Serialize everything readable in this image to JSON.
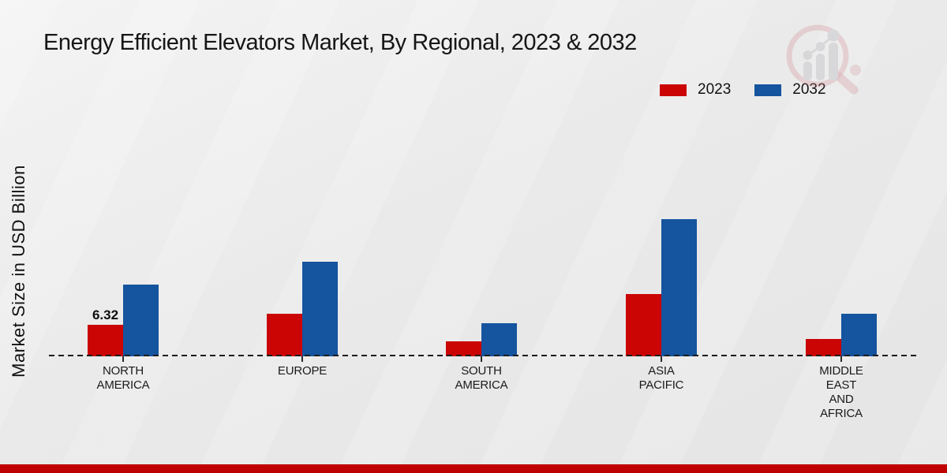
{
  "title": "Energy Efficient Elevators Market, By Regional, 2023 & 2032",
  "y_axis_label": "Market Size in USD Billion",
  "legend": [
    {
      "label": "2023",
      "color": "#cb0404"
    },
    {
      "label": "2032",
      "color": "#15549e"
    }
  ],
  "colors": {
    "series_2023": "#cb0404",
    "series_2032": "#15549e",
    "footer_accent": "#bf0101",
    "text": "#161616"
  },
  "logo_icon": "magnifier-bar-chart-watermark",
  "chart_data": {
    "type": "bar",
    "title": "Energy Efficient Elevators Market, By Regional, 2023 & 2032",
    "xlabel": "",
    "ylabel": "Market Size in USD Billion",
    "unit": "USD Billion",
    "categories": [
      "NORTH AMERICA",
      "EUROPE",
      "SOUTH AMERICA",
      "ASIA PACIFIC",
      "MIDDLE EAST AND AFRICA"
    ],
    "category_display_lines": [
      [
        "NORTH",
        "AMERICA"
      ],
      [
        "EUROPE"
      ],
      [
        "SOUTH",
        "AMERICA"
      ],
      [
        "ASIA",
        "PACIFIC"
      ],
      [
        "MIDDLE",
        "EAST",
        "AND",
        "AFRICA"
      ]
    ],
    "series": [
      {
        "name": "2023",
        "color": "#cb0404",
        "values": [
          6.32,
          8.5,
          3.0,
          12.5,
          3.5
        ],
        "data_labels": [
          "6.32",
          "",
          "",
          "",
          ""
        ]
      },
      {
        "name": "2032",
        "color": "#15549e",
        "values": [
          14.4,
          19.0,
          6.6,
          27.5,
          8.5
        ],
        "data_labels": [
          "",
          "",
          "",
          "",
          ""
        ]
      }
    ],
    "ylim": [
      0,
      30
    ],
    "grid": false,
    "y_ticks_shown": false,
    "baseline_style": "dashed",
    "legend_position": "top-right"
  }
}
